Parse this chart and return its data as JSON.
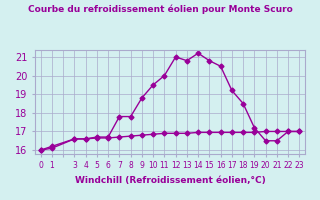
{
  "title": "Courbe du refroidissement éolien pour Monte Scuro",
  "xlabel": "Windchill (Refroidissement éolien,°C)",
  "ylabel": "",
  "bg_color": "#d4f0f0",
  "line_color": "#990099",
  "marker_color": "#990099",
  "grid_color": "#aaaacc",
  "x_hours": [
    0,
    1,
    3,
    4,
    5,
    6,
    7,
    8,
    9,
    10,
    11,
    12,
    13,
    14,
    15,
    16,
    17,
    18,
    19,
    20,
    21,
    22,
    23
  ],
  "y_temp": [
    16.0,
    16.2,
    16.6,
    16.6,
    16.7,
    16.7,
    17.8,
    17.8,
    18.8,
    19.5,
    20.0,
    21.0,
    20.8,
    21.2,
    20.8,
    20.5,
    19.2,
    18.5,
    17.2,
    16.5,
    16.5,
    17.0,
    17.0
  ],
  "y_flat": [
    16.0,
    16.1,
    16.6,
    16.6,
    16.65,
    16.65,
    16.7,
    16.75,
    16.8,
    16.85,
    16.9,
    16.9,
    16.9,
    16.95,
    16.95,
    16.95,
    16.95,
    16.95,
    16.95,
    17.0,
    17.0,
    17.0,
    17.0
  ],
  "ylim": [
    15.8,
    21.4
  ],
  "yticks": [
    16,
    17,
    18,
    19,
    20,
    21
  ],
  "xtick_labels": [
    "0",
    "1",
    "",
    "3",
    "4",
    "5",
    "6",
    "7",
    "8",
    "9",
    "10",
    "11",
    "12",
    "13",
    "14",
    "15",
    "16",
    "17",
    "18",
    "19",
    "20",
    "21",
    "22",
    "23"
  ],
  "axis_label_color": "#990099",
  "tick_label_color": "#990099",
  "title_color": "#990099"
}
